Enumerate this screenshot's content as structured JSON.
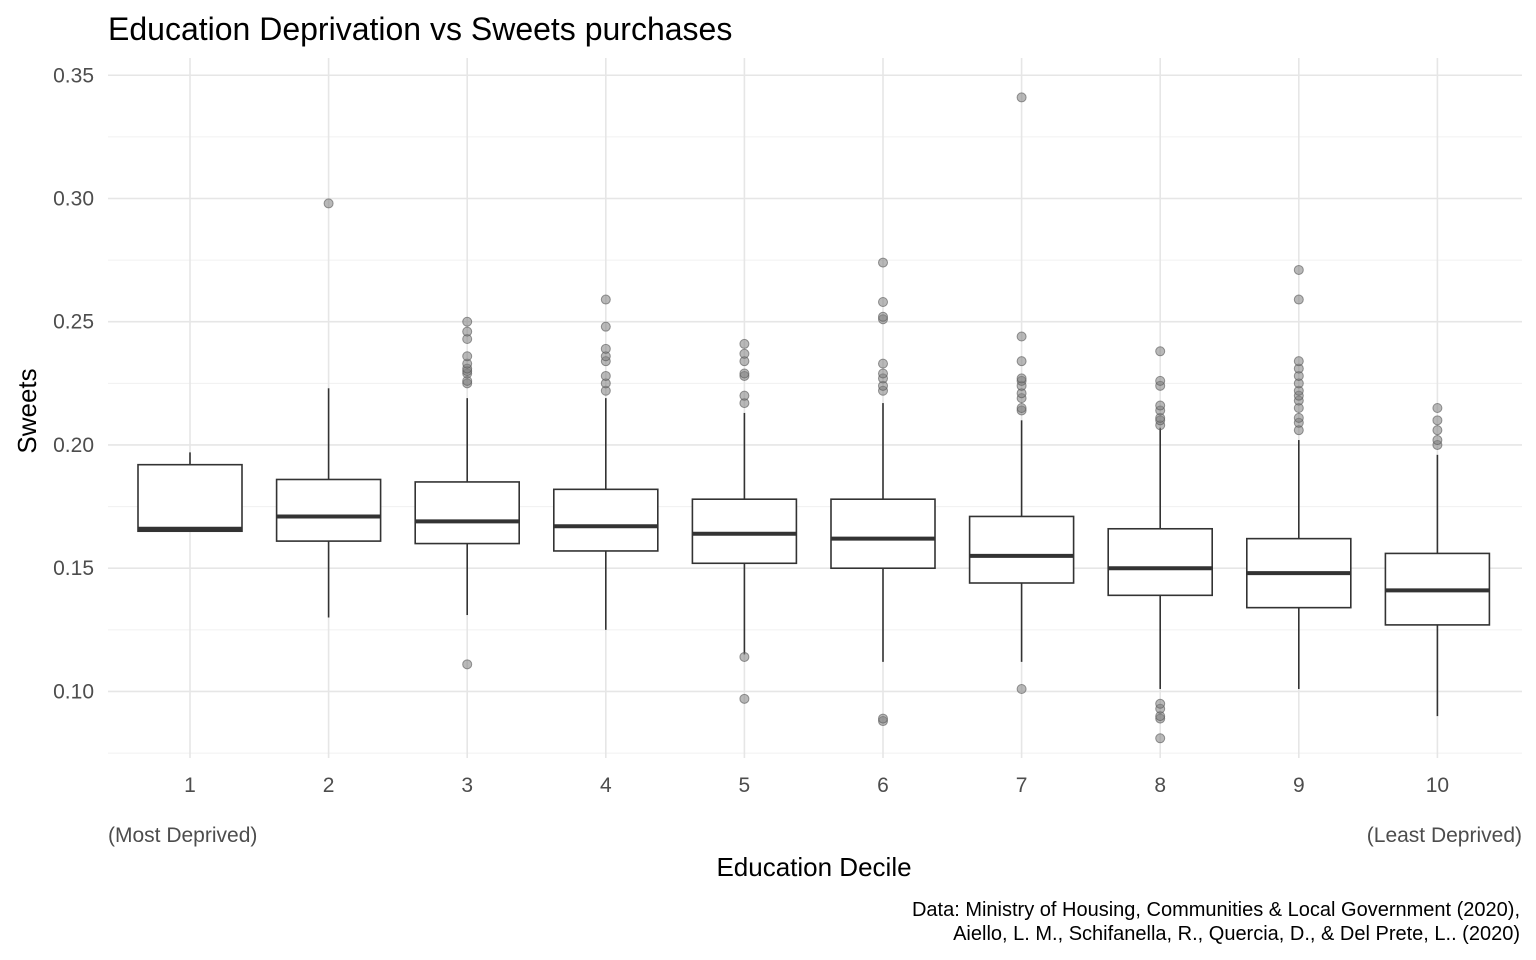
{
  "chart_data": {
    "type": "boxplot",
    "title": "Education Deprivation vs Sweets purchases",
    "xlabel": "Education Decile",
    "ylabel": "Sweets",
    "categories": [
      "1",
      "2",
      "3",
      "4",
      "5",
      "6",
      "7",
      "8",
      "9",
      "10"
    ],
    "y_ticks": [
      "0.10",
      "0.15",
      "0.20",
      "0.25",
      "0.30",
      "0.35"
    ],
    "ylim": [
      0.073,
      0.357
    ],
    "grid": true,
    "x_note_left": "(Most Deprived)",
    "x_note_right": "(Least Deprived)",
    "caption": [
      "Data: Ministry of Housing, Communities & Local Government (2020),",
      "Aiello, L. M., Schifanella, R., Quercia, D., & Del Prete, L.. (2020)"
    ],
    "boxes": [
      {
        "category": "1",
        "whisker_low": 0.165,
        "q1": 0.165,
        "median": 0.166,
        "q3": 0.192,
        "whisker_high": 0.197,
        "outliers": []
      },
      {
        "category": "2",
        "whisker_low": 0.13,
        "q1": 0.161,
        "median": 0.171,
        "q3": 0.186,
        "whisker_high": 0.223,
        "outliers": [
          0.298
        ]
      },
      {
        "category": "3",
        "whisker_low": 0.131,
        "q1": 0.16,
        "median": 0.169,
        "q3": 0.185,
        "whisker_high": 0.219,
        "outliers": [
          0.111,
          0.225,
          0.226,
          0.229,
          0.23,
          0.231,
          0.233,
          0.236,
          0.243,
          0.246,
          0.25
        ]
      },
      {
        "category": "4",
        "whisker_low": 0.125,
        "q1": 0.157,
        "median": 0.167,
        "q3": 0.182,
        "whisker_high": 0.219,
        "outliers": [
          0.222,
          0.225,
          0.228,
          0.234,
          0.236,
          0.239,
          0.248,
          0.259
        ]
      },
      {
        "category": "5",
        "whisker_low": 0.115,
        "q1": 0.152,
        "median": 0.164,
        "q3": 0.178,
        "whisker_high": 0.213,
        "outliers": [
          0.097,
          0.114,
          0.217,
          0.22,
          0.228,
          0.229,
          0.234,
          0.237,
          0.241
        ]
      },
      {
        "category": "6",
        "whisker_low": 0.112,
        "q1": 0.15,
        "median": 0.162,
        "q3": 0.178,
        "whisker_high": 0.217,
        "outliers": [
          0.088,
          0.089,
          0.222,
          0.224,
          0.227,
          0.229,
          0.233,
          0.251,
          0.252,
          0.258,
          0.274
        ]
      },
      {
        "category": "7",
        "whisker_low": 0.112,
        "q1": 0.144,
        "median": 0.155,
        "q3": 0.171,
        "whisker_high": 0.21,
        "outliers": [
          0.101,
          0.214,
          0.215,
          0.219,
          0.221,
          0.224,
          0.226,
          0.227,
          0.234,
          0.244,
          0.341
        ]
      },
      {
        "category": "8",
        "whisker_low": 0.101,
        "q1": 0.139,
        "median": 0.15,
        "q3": 0.166,
        "whisker_high": 0.207,
        "outliers": [
          0.081,
          0.089,
          0.09,
          0.093,
          0.095,
          0.208,
          0.21,
          0.211,
          0.214,
          0.216,
          0.224,
          0.226,
          0.238
        ]
      },
      {
        "category": "9",
        "whisker_low": 0.101,
        "q1": 0.134,
        "median": 0.148,
        "q3": 0.162,
        "whisker_high": 0.202,
        "outliers": [
          0.206,
          0.209,
          0.211,
          0.215,
          0.218,
          0.22,
          0.222,
          0.225,
          0.228,
          0.231,
          0.234,
          0.259,
          0.271
        ]
      },
      {
        "category": "10",
        "whisker_low": 0.09,
        "q1": 0.127,
        "median": 0.141,
        "q3": 0.156,
        "whisker_high": 0.196,
        "outliers": [
          0.2,
          0.202,
          0.206,
          0.21,
          0.215
        ]
      }
    ]
  }
}
